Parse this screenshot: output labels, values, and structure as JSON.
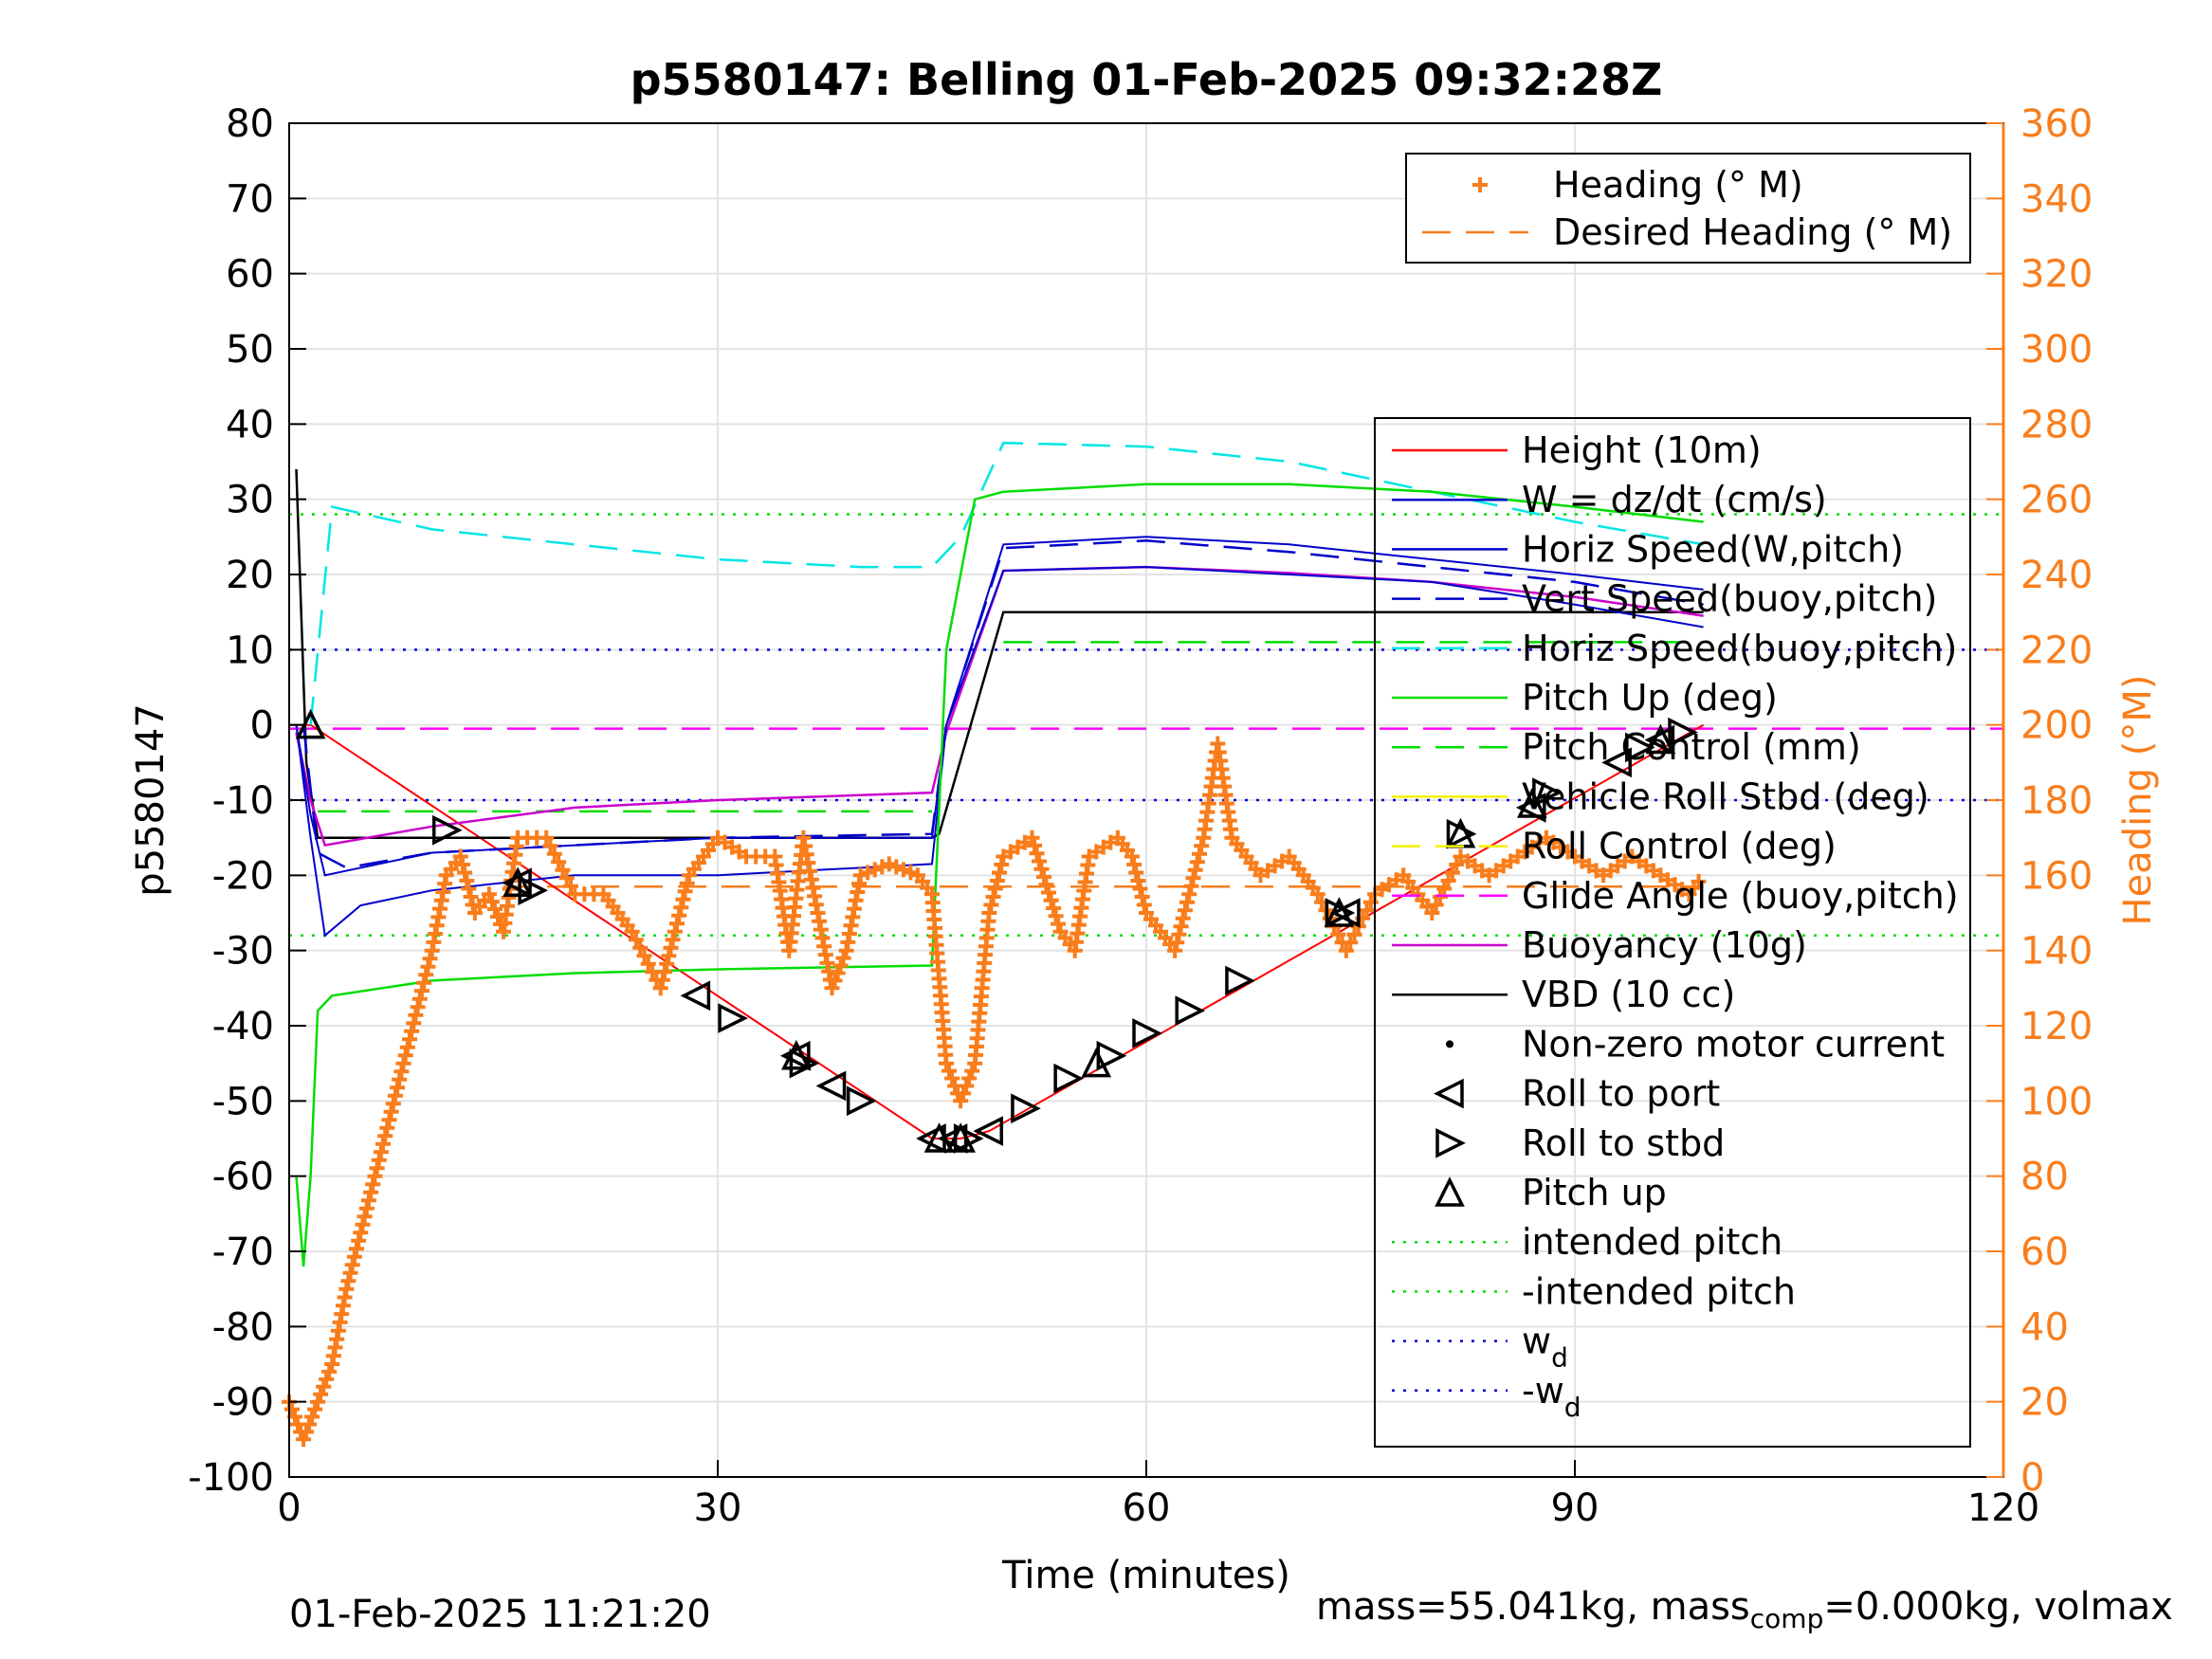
{
  "chart_data": {
    "type": "line",
    "title": "p5580147: Belling 01-Feb-2025 09:32:28Z",
    "xlabel": "Time (minutes)",
    "ylabel": "p5580147",
    "ylabel_right": "Heading (°M)",
    "xlim": [
      0,
      120
    ],
    "ylim": [
      -100,
      80
    ],
    "ylim_right": [
      0,
      360
    ],
    "x_ticks": [
      "0",
      "30",
      "60",
      "90",
      "120"
    ],
    "y_ticks": [
      "80",
      "70",
      "60",
      "50",
      "40",
      "30",
      "20",
      "10",
      "0",
      "-10",
      "-20",
      "-30",
      "-40",
      "-50",
      "-60",
      "-70",
      "-80",
      "-90",
      "-100"
    ],
    "y_ticks_right": [
      "360",
      "340",
      "320",
      "300",
      "280",
      "260",
      "240",
      "220",
      "200",
      "180",
      "160",
      "140",
      "120",
      "100",
      "80",
      "60",
      "40",
      "20",
      "0"
    ],
    "grid": true,
    "colors": {
      "heading": "#f97d1b",
      "height": "#ff0000",
      "w": "#0000cc",
      "horiz_w": "#0000cc",
      "vert_buoy": "#0000cc",
      "horiz_buoy": "#00e5e5",
      "pitch": "#00dd00",
      "pitch_control": "#00dd00",
      "roll": "#f2f200",
      "roll_control": "#f2f200",
      "glide": "#ff00ff",
      "buoyancy": "#cc00cc",
      "vbd": "#000000",
      "intended_pitch": "#00dd00",
      "wd": "#0000dd"
    },
    "legend_top": [
      {
        "label": "Heading (° M)",
        "style": "plus",
        "color": "#f97d1b"
      },
      {
        "label": "Desired Heading (° M)",
        "style": "dashed",
        "color": "#f97d1b"
      }
    ],
    "legend_main": [
      {
        "label": "Height (10m)",
        "style": "solid",
        "color": "#ff0000"
      },
      {
        "label": "W = dz/dt (cm/s)",
        "style": "solid",
        "color": "#0000cc"
      },
      {
        "label": "Horiz Speed(W,pitch)",
        "style": "solid",
        "color": "#0000cc"
      },
      {
        "label": "Vert Speed(buoy,pitch)",
        "style": "dashed",
        "color": "#0000cc"
      },
      {
        "label": "Horiz Speed(buoy,pitch)",
        "style": "dashed",
        "color": "#00e5e5"
      },
      {
        "label": "Pitch Up (deg)",
        "style": "solid",
        "color": "#00dd00"
      },
      {
        "label": "Pitch Control (mm)",
        "style": "dashed",
        "color": "#00dd00"
      },
      {
        "label": "Vehicle Roll Stbd (deg)",
        "style": "solid",
        "color": "#f2f200"
      },
      {
        "label": "Roll Control (deg)",
        "style": "dashed",
        "color": "#f2f200"
      },
      {
        "label": "Glide Angle (buoy,pitch)",
        "style": "dashed",
        "color": "#ff00ff"
      },
      {
        "label": "Buoyancy (10g)",
        "style": "solid",
        "color": "#cc00cc"
      },
      {
        "label": "VBD (10 cc)",
        "style": "solid",
        "color": "#000000"
      },
      {
        "label": "Non-zero motor current",
        "style": "dot",
        "color": "#000000"
      },
      {
        "label": "Roll to port",
        "style": "tri-left",
        "color": "#000000"
      },
      {
        "label": "Roll to stbd",
        "style": "tri-right",
        "color": "#000000"
      },
      {
        "label": "Pitch up",
        "style": "tri-up",
        "color": "#000000"
      },
      {
        "label": "intended pitch",
        "style": "dotted",
        "color": "#00dd00"
      },
      {
        "label": "-intended pitch",
        "style": "dotted",
        "color": "#00dd00"
      },
      {
        "label": "w",
        "sub": "d",
        "style": "dotted",
        "color": "#0000dd"
      },
      {
        "label": "-w",
        "sub": "d",
        "style": "dotted",
        "color": "#0000dd"
      }
    ],
    "series": [
      {
        "name": "Height (10m)",
        "x": [
          0,
          1.5,
          45,
          47,
          49,
          99
        ],
        "y": [
          0,
          0,
          -55,
          -55,
          -54,
          0
        ]
      },
      {
        "name": "VBD (10 cc)",
        "x": [
          0.5,
          1.2,
          2,
          45,
          45.5,
          50,
          99
        ],
        "y": [
          34,
          -5,
          -15,
          -15,
          -14.5,
          15,
          15
        ]
      },
      {
        "name": "Buoyancy (10g)",
        "x": [
          0.5,
          1.5,
          2.5,
          10,
          20,
          30,
          45,
          46,
          50,
          60,
          70,
          80,
          90,
          99
        ],
        "y": [
          -1,
          -10,
          -16,
          -13.5,
          -11,
          -10,
          -9,
          -1,
          20.5,
          21,
          20.2,
          19,
          17,
          14.5
        ]
      },
      {
        "name": "W = dz/dt (cm/s)",
        "x": [
          0.5,
          1.5,
          2.5,
          5,
          10,
          20,
          30,
          45,
          46,
          50,
          60,
          70,
          80,
          90,
          99
        ],
        "y": [
          0,
          -15,
          -28,
          -24,
          -22,
          -20,
          -20,
          -18.5,
          0,
          20.5,
          21,
          20,
          19,
          16,
          13
        ]
      },
      {
        "name": "Horiz Speed(W,pitch)",
        "x": [
          0.5,
          1.5,
          2.5,
          10,
          20,
          30,
          45,
          46,
          50,
          60,
          70,
          80,
          90,
          99
        ],
        "y": [
          0,
          -12,
          -20,
          -17,
          -16,
          -15,
          -15,
          0,
          24,
          25,
          24,
          22,
          20,
          18
        ]
      },
      {
        "name": "Vert Speed(buoy,pitch)",
        "x": [
          1,
          2,
          4,
          10,
          20,
          30,
          45,
          46,
          50,
          60,
          70,
          80,
          90,
          99
        ],
        "y": [
          0,
          -17,
          -19,
          -17,
          -16,
          -15,
          -14.5,
          0,
          23.5,
          24.5,
          23,
          21,
          19,
          16
        ]
      },
      {
        "name": "Horiz Speed(buoy,pitch)",
        "x": [
          1.5,
          3,
          10,
          20,
          30,
          40,
          45,
          47,
          50,
          60,
          70,
          80,
          90,
          99
        ],
        "y": [
          0,
          29,
          26,
          24,
          22,
          21,
          21,
          25,
          37.5,
          37,
          35,
          31,
          27,
          24
        ]
      },
      {
        "name": "Pitch Up (deg)",
        "x": [
          0.5,
          1,
          1.5,
          2,
          3,
          10,
          20,
          30,
          45,
          46,
          48,
          50,
          60,
          70,
          80,
          90,
          99
        ],
        "y": [
          -60,
          -72,
          -60,
          -38,
          -36,
          -34,
          -33,
          -32.5,
          -32,
          10,
          30,
          31,
          32,
          32,
          31,
          29,
          27
        ]
      },
      {
        "name": "Heading (° M)",
        "x": [
          0,
          1,
          2,
          3,
          4,
          5,
          6,
          7,
          8,
          9,
          10,
          11,
          12,
          13,
          14,
          15,
          16,
          18,
          20,
          22,
          24,
          26,
          28,
          29,
          30,
          32,
          34,
          35,
          36,
          38,
          39,
          40,
          42,
          44,
          45,
          46,
          47,
          48,
          49,
          50,
          52,
          54,
          55,
          56,
          58,
          59,
          60,
          62,
          64,
          65,
          66,
          68,
          70,
          72,
          74,
          76,
          78,
          80,
          82,
          84,
          86,
          88,
          90,
          92,
          94,
          96,
          98,
          99
        ],
        "y": [
          20,
          10,
          20,
          30,
          50,
          65,
          80,
          95,
          110,
          125,
          140,
          160,
          165,
          150,
          155,
          145,
          170,
          170,
          155,
          155,
          145,
          130,
          160,
          165,
          170,
          165,
          165,
          140,
          170,
          130,
          140,
          160,
          163,
          160,
          155,
          110,
          100,
          110,
          150,
          165,
          170,
          145,
          140,
          165,
          170,
          165,
          150,
          140,
          170,
          195,
          170,
          160,
          165,
          155,
          140,
          155,
          160,
          150,
          165,
          160,
          165,
          170,
          165,
          160,
          165,
          160,
          155,
          160
        ]
      }
    ],
    "reference_lines": [
      {
        "name": "intended pitch",
        "y": 28
      },
      {
        "name": "-intended pitch",
        "y": -28
      },
      {
        "name": "wd",
        "y": 10
      },
      {
        "name": "-wd",
        "y": -10
      },
      {
        "name": "Glide Angle (buoy,pitch)",
        "y": -0.5
      },
      {
        "name": "Pitch Control (mm)",
        "values": [
          -11.5,
          11
        ]
      },
      {
        "name": "Desired Heading (° M)",
        "y_right": 157
      }
    ],
    "markers": {
      "roll_to_port": [
        [
          16,
          -21
        ],
        [
          28.5,
          -36
        ],
        [
          35.5,
          -44
        ],
        [
          38,
          -48
        ],
        [
          45,
          -55
        ],
        [
          46.5,
          -55
        ],
        [
          49,
          -54
        ],
        [
          74,
          -25
        ],
        [
          87,
          -11
        ],
        [
          93,
          -5
        ],
        [
          96,
          -2
        ]
      ],
      "roll_to_stbd": [
        [
          11,
          -14
        ],
        [
          17,
          -22
        ],
        [
          31,
          -39
        ],
        [
          36,
          -45
        ],
        [
          40,
          -50
        ],
        [
          47.5,
          -55
        ],
        [
          51.5,
          -51
        ],
        [
          54.5,
          -47
        ],
        [
          57.5,
          -44
        ],
        [
          60,
          -41
        ],
        [
          63,
          -38
        ],
        [
          66.5,
          -34
        ],
        [
          73.5,
          -25
        ],
        [
          82,
          -14.5
        ],
        [
          88,
          -9
        ],
        [
          94.5,
          -3
        ],
        [
          97.5,
          -1
        ]
      ],
      "pitch_up": [
        [
          1.5,
          0
        ],
        [
          16,
          -21
        ],
        [
          35.5,
          -44
        ],
        [
          45.5,
          -55
        ],
        [
          47,
          -55
        ],
        [
          56.5,
          -45
        ],
        [
          73.5,
          -25
        ],
        [
          82,
          -14.5
        ],
        [
          87,
          -10.5
        ],
        [
          96,
          -2
        ]
      ]
    }
  },
  "footer": {
    "timestamp": "01-Feb-2025 11:21:20",
    "mass_prefix": "mass=55.041kg, mass",
    "mass_sub": "comp",
    "mass_suffix": "=0.000kg, volmax"
  }
}
